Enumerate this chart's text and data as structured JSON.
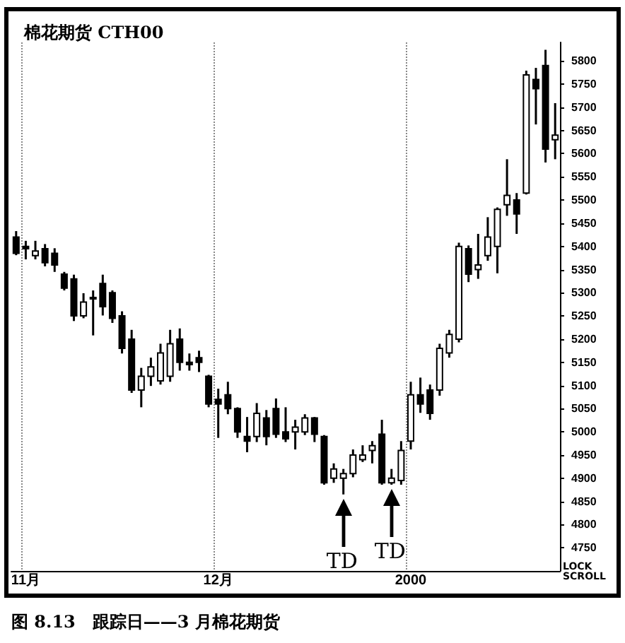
{
  "chart_data": {
    "type": "candlestick",
    "title": "棉花期货 CTH00",
    "annotations": [
      "TD",
      "TD",
      "LOCK SCROLL",
      "图 8.13　跟踪日——3 月棉花期货"
    ],
    "categories": [
      null,
      "11月",
      null,
      null,
      null,
      null,
      null,
      null,
      null,
      null,
      null,
      null,
      null,
      null,
      null,
      null,
      null,
      null,
      null,
      null,
      null,
      "12月",
      null,
      null,
      null,
      null,
      null,
      null,
      null,
      null,
      null,
      null,
      null,
      null,
      null,
      null,
      null,
      null,
      null,
      null,
      null,
      "2000",
      null,
      null,
      null,
      null,
      null,
      null,
      null,
      null,
      null,
      null,
      null,
      null,
      null,
      null,
      null
    ],
    "ohlc": [
      [
        5420,
        5433,
        5381,
        5385
      ],
      [
        5400,
        5412,
        5372,
        5395
      ],
      [
        5380,
        5412,
        5372,
        5390
      ],
      [
        5395,
        5405,
        5357,
        5365
      ],
      [
        5385,
        5396,
        5345,
        5360
      ],
      [
        5340,
        5345,
        5305,
        5310
      ],
      [
        5330,
        5339,
        5239,
        5250
      ],
      [
        5250,
        5299,
        5245,
        5280
      ],
      [
        5290,
        5305,
        5208,
        5290
      ],
      [
        5320,
        5339,
        5251,
        5270
      ],
      [
        5300,
        5305,
        5235,
        5245
      ],
      [
        5250,
        5260,
        5169,
        5180
      ],
      [
        5200,
        5220,
        5084,
        5090
      ],
      [
        5090,
        5138,
        5053,
        5120
      ],
      [
        5120,
        5160,
        5099,
        5140
      ],
      [
        5110,
        5190,
        5102,
        5170
      ],
      [
        5120,
        5220,
        5108,
        5190
      ],
      [
        5200,
        5223,
        5132,
        5150
      ],
      [
        5150,
        5169,
        5132,
        5145
      ],
      [
        5160,
        5175,
        5129,
        5150
      ],
      [
        5120,
        5123,
        5053,
        5060
      ],
      [
        5070,
        5093,
        4987,
        5060
      ],
      [
        5080,
        5108,
        5038,
        5050
      ],
      [
        5050,
        5053,
        4987,
        5000
      ],
      [
        4990,
        5032,
        4956,
        4980
      ],
      [
        4990,
        5062,
        4978,
        5040
      ],
      [
        5030,
        5047,
        4971,
        4990
      ],
      [
        5050,
        5072,
        4987,
        4995
      ],
      [
        5000,
        5053,
        4978,
        4985
      ],
      [
        5000,
        5026,
        4962,
        5010
      ],
      [
        5000,
        5038,
        4993,
        5030
      ],
      [
        5030,
        5032,
        4978,
        4995
      ],
      [
        4990,
        4993,
        4886,
        4890
      ],
      [
        4900,
        4932,
        4890,
        4920
      ],
      [
        4900,
        4920,
        4865,
        4910
      ],
      [
        4910,
        4962,
        4902,
        4950
      ],
      [
        4940,
        4971,
        4935,
        4950
      ],
      [
        4960,
        4980,
        4932,
        4970
      ],
      [
        4995,
        5026,
        4886,
        4890
      ],
      [
        4890,
        4920,
        4886,
        4900
      ],
      [
        4895,
        4980,
        4886,
        4960
      ],
      [
        4980,
        5108,
        4962,
        5080
      ],
      [
        5080,
        5117,
        5041,
        5060
      ],
      [
        5090,
        5102,
        5026,
        5040
      ],
      [
        5090,
        5190,
        5078,
        5180
      ],
      [
        5170,
        5220,
        5160,
        5210
      ],
      [
        5200,
        5408,
        5193,
        5400
      ],
      [
        5395,
        5402,
        5323,
        5340
      ],
      [
        5350,
        5427,
        5330,
        5360
      ],
      [
        5380,
        5463,
        5369,
        5420
      ],
      [
        5400,
        5484,
        5342,
        5480
      ],
      [
        5490,
        5588,
        5466,
        5510
      ],
      [
        5500,
        5515,
        5427,
        5470
      ],
      [
        5515,
        5779,
        5512,
        5770
      ],
      [
        5760,
        5785,
        5663,
        5740
      ],
      [
        5790,
        5824,
        5581,
        5610
      ],
      [
        5630,
        5709,
        5588,
        5640
      ]
    ],
    "color": "#000000",
    "ylim": [
      4700,
      5840
    ],
    "yticks": [
      4750,
      4800,
      4850,
      4900,
      4950,
      5000,
      5050,
      5100,
      5150,
      5200,
      5250,
      5300,
      5350,
      5400,
      5450,
      5500,
      5550,
      5600,
      5650,
      5700,
      5750,
      5800
    ],
    "grid": "x"
  }
}
